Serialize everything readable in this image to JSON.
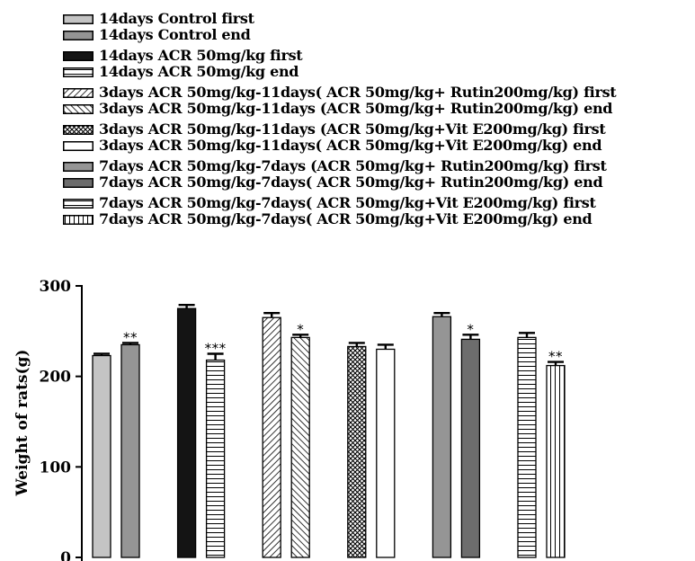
{
  "chart_data": {
    "type": "bar",
    "title": "",
    "xlabel": "",
    "ylabel": "Weight of rats(g)",
    "ylim": [
      0,
      300
    ],
    "yticks": [
      0,
      100,
      200,
      300
    ],
    "grid": false,
    "legend_position": "top-left",
    "error_bars": true,
    "series": [
      {
        "name": "14days Control first",
        "value": 223,
        "error": 2,
        "significance": "",
        "group": 0,
        "fill": "light-gray"
      },
      {
        "name": "14days Control  end",
        "value": 235,
        "error": 2,
        "significance": "**",
        "group": 0,
        "fill": "medium-gray"
      },
      {
        "name": "14days ACR 50mg/kg first",
        "value": 275,
        "error": 4,
        "significance": "",
        "group": 1,
        "fill": "black"
      },
      {
        "name": "14days ACR 50mg/kg end",
        "value": 218,
        "error": 7,
        "significance": "***",
        "group": 1,
        "fill": "horizontal-lines"
      },
      {
        "name": "3days ACR 50mg/kg-11days( ACR 50mg/kg+ Rutin200mg/kg) first",
        "value": 265,
        "error": 5,
        "significance": "",
        "group": 2,
        "fill": "diagonal-down"
      },
      {
        "name": "3days ACR 50mg/kg-11days (ACR 50mg/kg+ Rutin200mg/kg) end",
        "value": 243,
        "error": 3,
        "significance": "*",
        "group": 2,
        "fill": "diagonal-up"
      },
      {
        "name": "3days ACR 50mg/kg-11days (ACR 50mg/kg+Vit E200mg/kg) first",
        "value": 233,
        "error": 4,
        "significance": "",
        "group": 3,
        "fill": "crosshatch"
      },
      {
        "name": "3days ACR 50mg/kg-11days( ACR 50mg/kg+Vit E200mg/kg) end",
        "value": 230,
        "error": 5,
        "significance": "",
        "group": 3,
        "fill": "white"
      },
      {
        "name": "7days ACR 50mg/kg-7days (ACR 50mg/kg+ Rutin200mg/kg) first",
        "value": 266,
        "error": 4,
        "significance": "",
        "group": 4,
        "fill": "medium-gray"
      },
      {
        "name": "7days ACR 50mg/kg-7days( ACR 50mg/kg+ Rutin200mg/kg) end",
        "value": 241,
        "error": 5,
        "significance": "*",
        "group": 4,
        "fill": "dark-gray"
      },
      {
        "name": "7days ACR 50mg/kg-7days( ACR 50mg/kg+Vit E200mg/kg) first",
        "value": 243,
        "error": 5,
        "significance": "",
        "group": 5,
        "fill": "horizontal-lines"
      },
      {
        "name": "7days ACR 50mg/kg-7days( ACR 50mg/kg+Vit E200mg/kg) end",
        "value": 212,
        "error": 4,
        "significance": "**",
        "group": 5,
        "fill": "vertical-lines"
      }
    ]
  },
  "colors": {
    "light-gray": "#c4c4c4",
    "medium-gray": "#959595",
    "dark-gray": "#6d6d6d",
    "black": "#141414",
    "white": "#ffffff",
    "stroke": "#000000"
  }
}
